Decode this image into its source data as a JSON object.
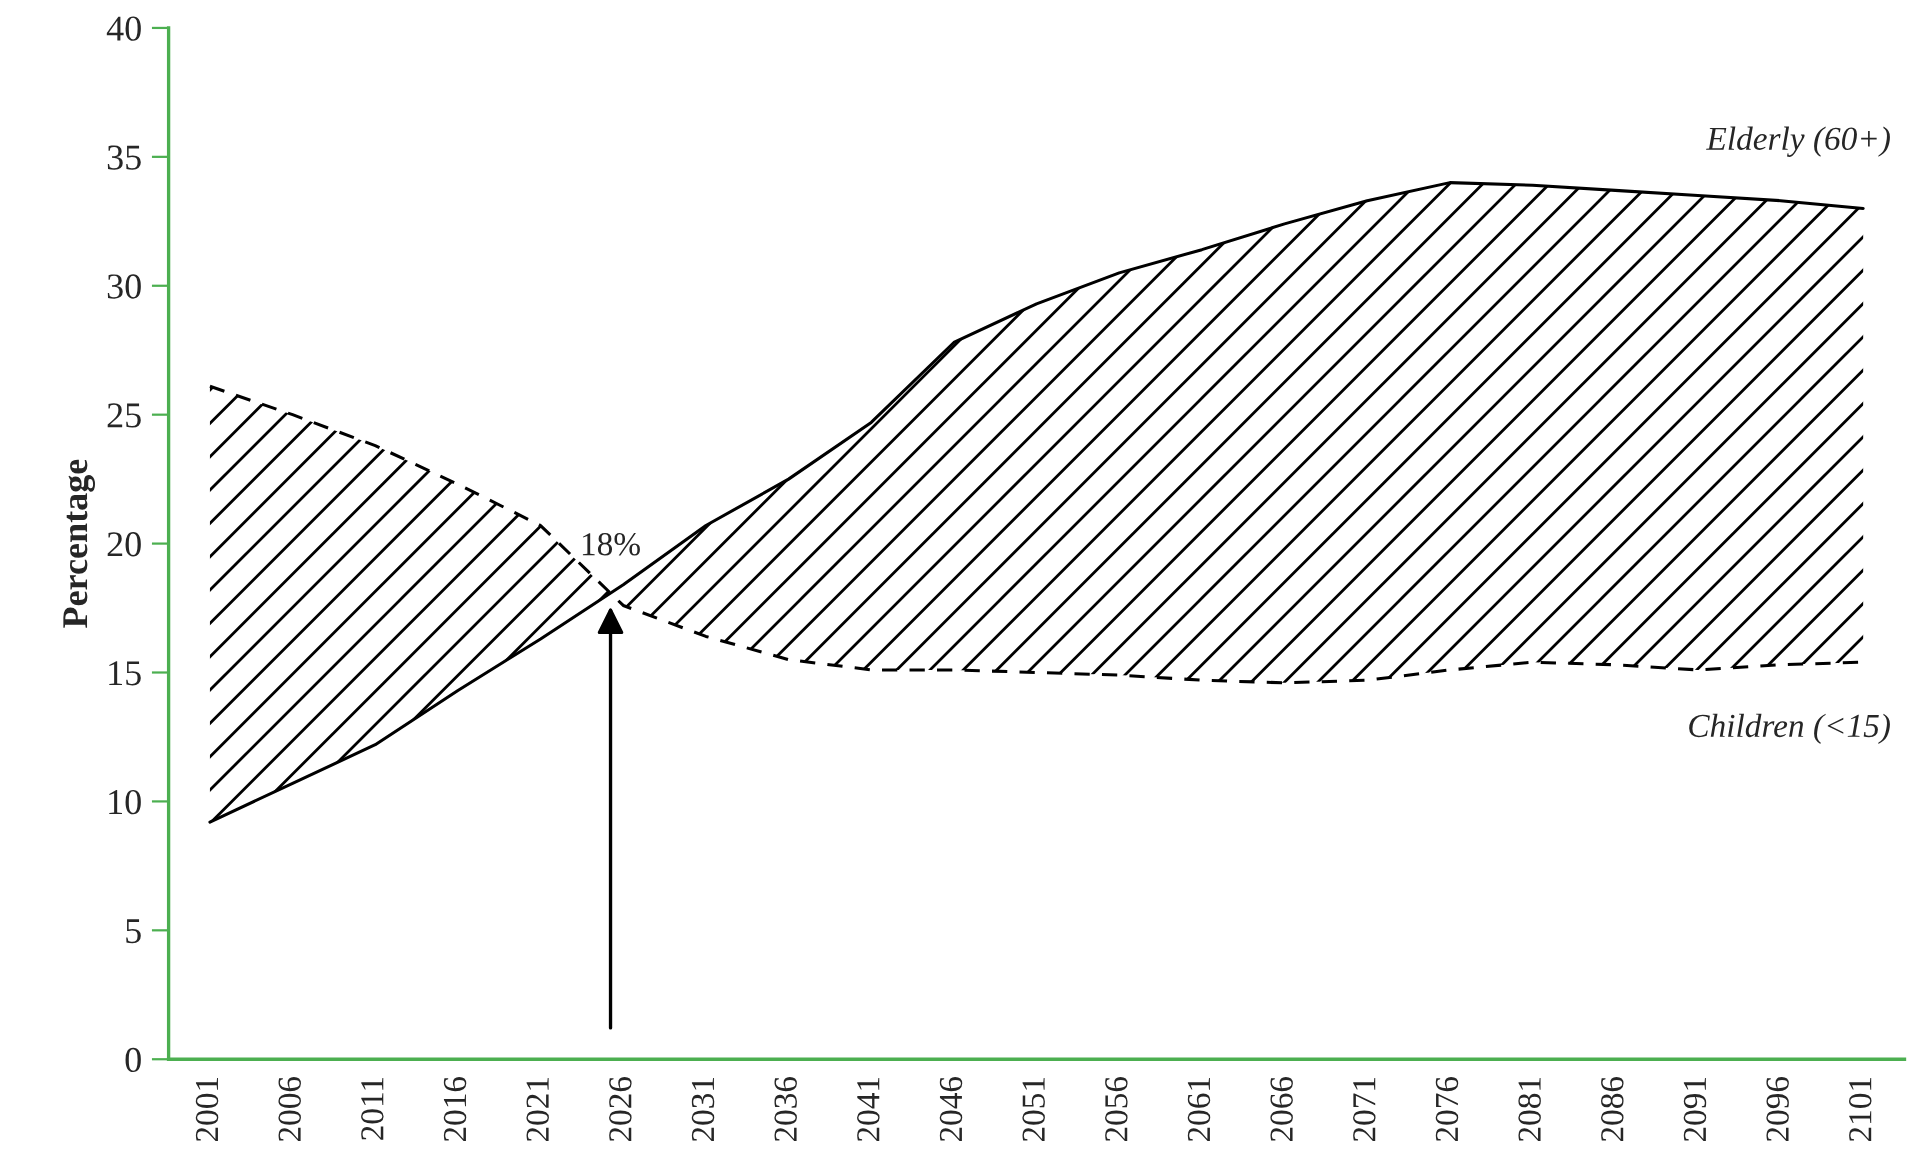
{
  "chart_data": {
    "type": "line",
    "ylabel": "Percentage",
    "categories": [
      "2001",
      "2006",
      "2011",
      "2016",
      "2021",
      "2026",
      "2031",
      "2036",
      "2041",
      "2046",
      "2051",
      "2056",
      "2061",
      "2066",
      "2071",
      "2076",
      "2081",
      "2086",
      "2091",
      "2096",
      "2101"
    ],
    "series": [
      {
        "name": "Elderly (60+)",
        "color": "#000000",
        "line_style": "solid",
        "values": [
          9.2,
          10.7,
          12.2,
          14.3,
          16.3,
          18.4,
          20.7,
          22.5,
          24.7,
          27.8,
          29.3,
          30.5,
          31.4,
          32.4,
          33.3,
          34.0,
          33.9,
          33.7,
          33.5,
          33.3,
          33.0
        ]
      },
      {
        "name": "Children (<15)",
        "color": "#000000",
        "line_style": "dashed",
        "values": [
          26.1,
          25.0,
          23.8,
          22.3,
          20.7,
          17.6,
          16.4,
          15.5,
          15.1,
          15.1,
          15.0,
          14.9,
          14.7,
          14.6,
          14.7,
          15.1,
          15.4,
          15.3,
          15.1,
          15.3,
          15.4
        ]
      }
    ],
    "annotations": [
      "18%"
    ],
    "ylim": [
      0,
      40
    ],
    "yticks": [
      0,
      5,
      10,
      15,
      20,
      25,
      30,
      35,
      40
    ],
    "grid": false,
    "legend": false
  }
}
